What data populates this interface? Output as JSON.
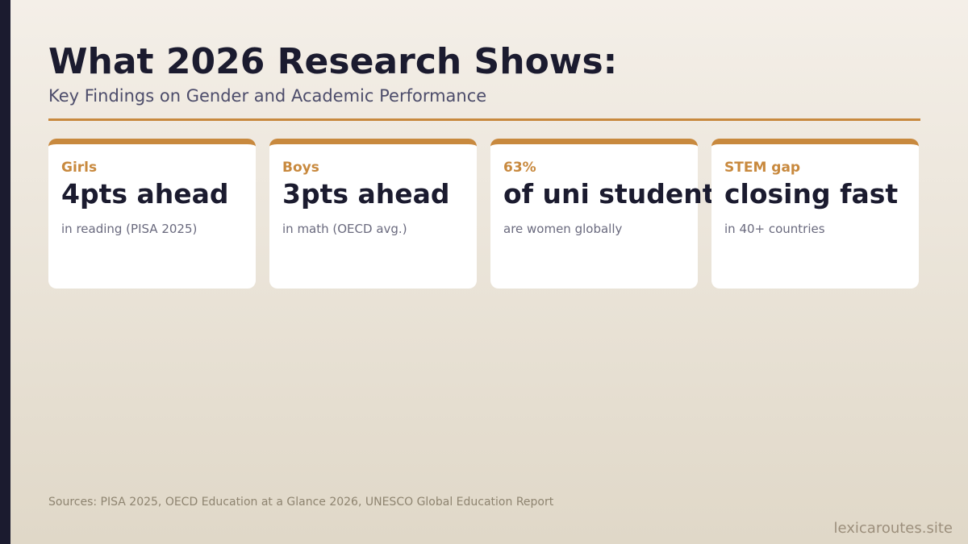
{
  "header": {
    "title": "What 2026 Research Shows:",
    "subtitle": "Key Findings on Gender and Academic Performance"
  },
  "cards": [
    {
      "label": "Girls",
      "headline": "4pts ahead",
      "detail": "in reading (PISA 2025)"
    },
    {
      "label": "Boys",
      "headline": "3pts ahead",
      "detail": "in math (OECD avg.)"
    },
    {
      "label": "63%",
      "headline": "of uni students",
      "detail": "are women globally"
    },
    {
      "label": "STEM gap",
      "headline": "closing fast",
      "detail": "in 40+ countries"
    }
  ],
  "footer": {
    "sources": "Sources: PISA 2025, OECD Education at a Glance 2026, UNESCO Global Education Report",
    "watermark": "lexicaroutes.site"
  }
}
